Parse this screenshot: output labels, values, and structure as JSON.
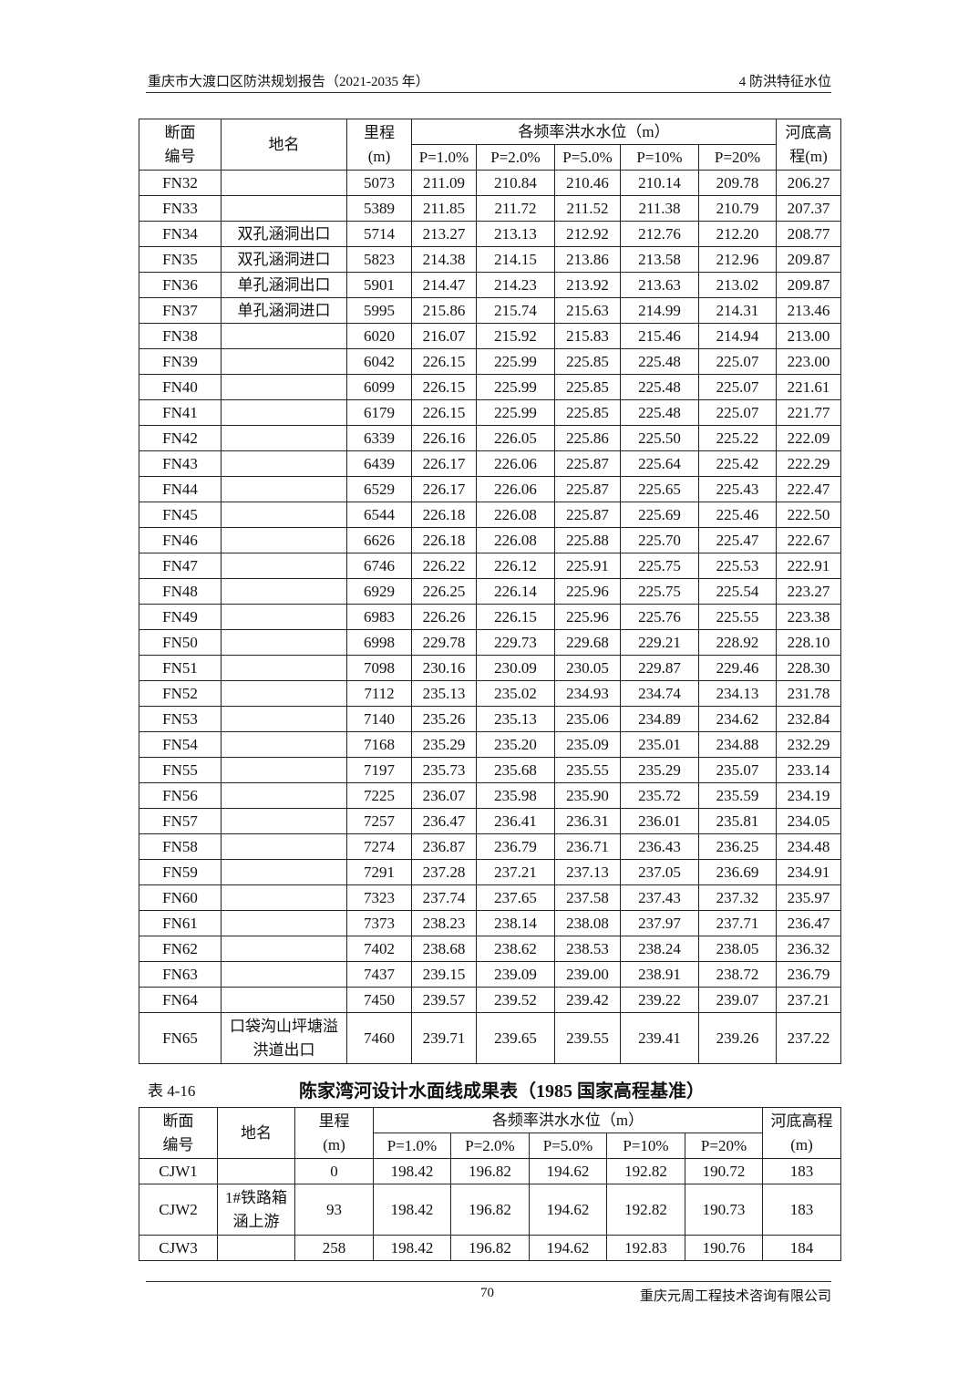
{
  "header": {
    "left": "重庆市大渡口区防洪规划报告（2021-2035 年）",
    "right": "4  防洪特征水位"
  },
  "table1": {
    "head": {
      "section": "断面\n编号",
      "name": "地名",
      "mileage": "里程\n(m)",
      "group": "各频率洪水水位（m）",
      "freqs": [
        "P=1.0%",
        "P=2.0%",
        "P=5.0%",
        "P=10%",
        "P=20%"
      ],
      "bed": "河底高\n程(m)"
    },
    "rows": [
      [
        "FN32",
        "",
        "5073",
        "211.09",
        "210.84",
        "210.46",
        "210.14",
        "209.78",
        "206.27"
      ],
      [
        "FN33",
        "",
        "5389",
        "211.85",
        "211.72",
        "211.52",
        "211.38",
        "210.79",
        "207.37"
      ],
      [
        "FN34",
        "双孔涵洞出口",
        "5714",
        "213.27",
        "213.13",
        "212.92",
        "212.76",
        "212.20",
        "208.77"
      ],
      [
        "FN35",
        "双孔涵洞进口",
        "5823",
        "214.38",
        "214.15",
        "213.86",
        "213.58",
        "212.96",
        "209.87"
      ],
      [
        "FN36",
        "单孔涵洞出口",
        "5901",
        "214.47",
        "214.23",
        "213.92",
        "213.63",
        "213.02",
        "209.87"
      ],
      [
        "FN37",
        "单孔涵洞进口",
        "5995",
        "215.86",
        "215.74",
        "215.63",
        "214.99",
        "214.31",
        "213.46"
      ],
      [
        "FN38",
        "",
        "6020",
        "216.07",
        "215.92",
        "215.83",
        "215.46",
        "214.94",
        "213.00"
      ],
      [
        "FN39",
        "",
        "6042",
        "226.15",
        "225.99",
        "225.85",
        "225.48",
        "225.07",
        "223.00"
      ],
      [
        "FN40",
        "",
        "6099",
        "226.15",
        "225.99",
        "225.85",
        "225.48",
        "225.07",
        "221.61"
      ],
      [
        "FN41",
        "",
        "6179",
        "226.15",
        "225.99",
        "225.85",
        "225.48",
        "225.07",
        "221.77"
      ],
      [
        "FN42",
        "",
        "6339",
        "226.16",
        "226.05",
        "225.86",
        "225.50",
        "225.22",
        "222.09"
      ],
      [
        "FN43",
        "",
        "6439",
        "226.17",
        "226.06",
        "225.87",
        "225.64",
        "225.42",
        "222.29"
      ],
      [
        "FN44",
        "",
        "6529",
        "226.17",
        "226.06",
        "225.87",
        "225.65",
        "225.43",
        "222.47"
      ],
      [
        "FN45",
        "",
        "6544",
        "226.18",
        "226.08",
        "225.87",
        "225.69",
        "225.46",
        "222.50"
      ],
      [
        "FN46",
        "",
        "6626",
        "226.18",
        "226.08",
        "225.88",
        "225.70",
        "225.47",
        "222.67"
      ],
      [
        "FN47",
        "",
        "6746",
        "226.22",
        "226.12",
        "225.91",
        "225.75",
        "225.53",
        "222.91"
      ],
      [
        "FN48",
        "",
        "6929",
        "226.25",
        "226.14",
        "225.96",
        "225.75",
        "225.54",
        "223.27"
      ],
      [
        "FN49",
        "",
        "6983",
        "226.26",
        "226.15",
        "225.96",
        "225.76",
        "225.55",
        "223.38"
      ],
      [
        "FN50",
        "",
        "6998",
        "229.78",
        "229.73",
        "229.68",
        "229.21",
        "228.92",
        "228.10"
      ],
      [
        "FN51",
        "",
        "7098",
        "230.16",
        "230.09",
        "230.05",
        "229.87",
        "229.46",
        "228.30"
      ],
      [
        "FN52",
        "",
        "7112",
        "235.13",
        "235.02",
        "234.93",
        "234.74",
        "234.13",
        "231.78"
      ],
      [
        "FN53",
        "",
        "7140",
        "235.26",
        "235.13",
        "235.06",
        "234.89",
        "234.62",
        "232.84"
      ],
      [
        "FN54",
        "",
        "7168",
        "235.29",
        "235.20",
        "235.09",
        "235.01",
        "234.88",
        "232.29"
      ],
      [
        "FN55",
        "",
        "7197",
        "235.73",
        "235.68",
        "235.55",
        "235.29",
        "235.07",
        "233.14"
      ],
      [
        "FN56",
        "",
        "7225",
        "236.07",
        "235.98",
        "235.90",
        "235.72",
        "235.59",
        "234.19"
      ],
      [
        "FN57",
        "",
        "7257",
        "236.47",
        "236.41",
        "236.31",
        "236.01",
        "235.81",
        "234.05"
      ],
      [
        "FN58",
        "",
        "7274",
        "236.87",
        "236.79",
        "236.71",
        "236.43",
        "236.25",
        "234.48"
      ],
      [
        "FN59",
        "",
        "7291",
        "237.28",
        "237.21",
        "237.13",
        "237.05",
        "236.69",
        "234.91"
      ],
      [
        "FN60",
        "",
        "7323",
        "237.74",
        "237.65",
        "237.58",
        "237.43",
        "237.32",
        "235.97"
      ],
      [
        "FN61",
        "",
        "7373",
        "238.23",
        "238.14",
        "238.08",
        "237.97",
        "237.71",
        "236.47"
      ],
      [
        "FN62",
        "",
        "7402",
        "238.68",
        "238.62",
        "238.53",
        "238.24",
        "238.05",
        "236.32"
      ],
      [
        "FN63",
        "",
        "7437",
        "239.15",
        "239.09",
        "239.00",
        "238.91",
        "238.72",
        "236.79"
      ],
      [
        "FN64",
        "",
        "7450",
        "239.57",
        "239.52",
        "239.42",
        "239.22",
        "239.07",
        "237.21"
      ],
      [
        "FN65",
        "口袋沟山坪塘溢洪道出口",
        "7460",
        "239.71",
        "239.65",
        "239.55",
        "239.41",
        "239.26",
        "237.22"
      ]
    ]
  },
  "table2": {
    "label": "表 4-16",
    "title": "陈家湾河设计水面线成果表（1985 国家高程基准）",
    "head": {
      "section": "断面\n编号",
      "name": "地名",
      "mileage": "里程\n(m)",
      "group": "各频率洪水水位（m）",
      "freqs": [
        "P=1.0%",
        "P=2.0%",
        "P=5.0%",
        "P=10%",
        "P=20%"
      ],
      "bed": "河底高程\n(m)"
    },
    "rows": [
      [
        "CJW1",
        "",
        "0",
        "198.42",
        "196.82",
        "194.62",
        "192.82",
        "190.72",
        "183"
      ],
      [
        "CJW2",
        "1#铁路箱涵上游",
        "93",
        "198.42",
        "196.82",
        "194.62",
        "192.82",
        "190.73",
        "183"
      ],
      [
        "CJW3",
        "",
        "258",
        "198.42",
        "196.82",
        "194.62",
        "192.83",
        "190.76",
        "184"
      ]
    ]
  },
  "footer": {
    "page": "70",
    "company": "重庆元周工程技术咨询有限公司"
  }
}
